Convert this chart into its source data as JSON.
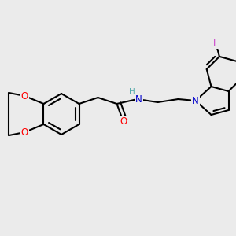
{
  "background_color": "#ebebeb",
  "bond_color": "#000000",
  "O_color": "#ff0000",
  "N_color": "#0000cc",
  "F_color": "#cc44cc",
  "H_color": "#55aaaa",
  "lw": 1.5,
  "fontsize": 8.5,
  "figsize": [
    3.0,
    3.0
  ],
  "dpi": 100,
  "xlim": [
    0,
    300
  ],
  "ylim": [
    0,
    300
  ]
}
